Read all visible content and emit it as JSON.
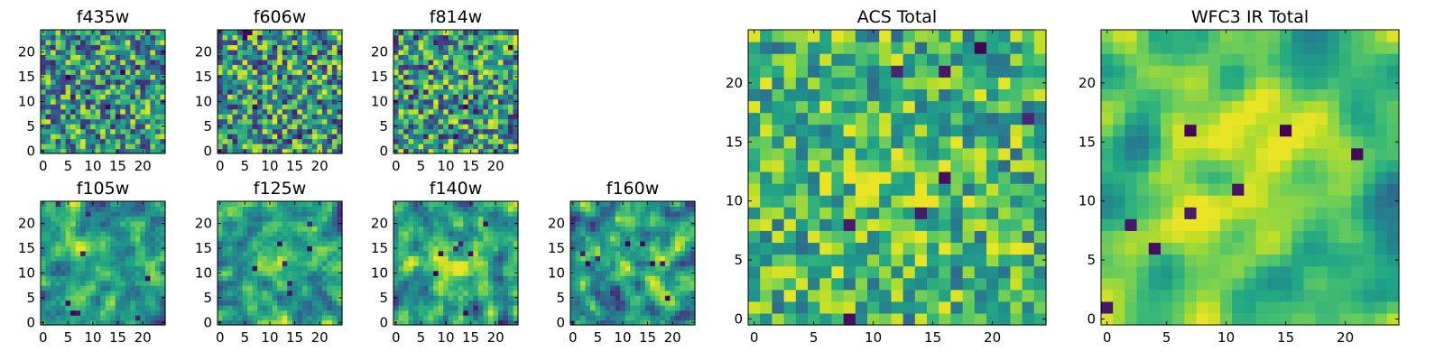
{
  "chart_data": [
    {
      "type": "heatmap",
      "title": "f435w",
      "grid_size": 25,
      "xlim": [
        0,
        24
      ],
      "ylim": [
        0,
        24
      ],
      "xticks": [
        "0",
        "5",
        "10",
        "15",
        "20"
      ],
      "yticks": [
        "0",
        "5",
        "10",
        "15",
        "20"
      ],
      "seed": 11,
      "smooth": 0,
      "center": 0.0,
      "lo": 0.12,
      "hi": 0.95,
      "colormap": "viridis"
    },
    {
      "type": "heatmap",
      "title": "f606w",
      "grid_size": 25,
      "xlim": [
        0,
        24
      ],
      "ylim": [
        0,
        24
      ],
      "xticks": [
        "0",
        "5",
        "10",
        "15",
        "20"
      ],
      "yticks": [
        "0",
        "5",
        "10",
        "15",
        "20"
      ],
      "seed": 23,
      "smooth": 0,
      "center": 0.0,
      "lo": 0.1,
      "hi": 0.97,
      "colormap": "viridis"
    },
    {
      "type": "heatmap",
      "title": "f814w",
      "grid_size": 25,
      "xlim": [
        0,
        24
      ],
      "ylim": [
        0,
        24
      ],
      "xticks": [
        "0",
        "5",
        "10",
        "15",
        "20"
      ],
      "yticks": [
        "0",
        "5",
        "10",
        "15",
        "20"
      ],
      "seed": 37,
      "smooth": 0,
      "center": 0.0,
      "lo": 0.1,
      "hi": 0.97,
      "colormap": "viridis"
    },
    {
      "type": "heatmap",
      "title": "f105w",
      "grid_size": 25,
      "xlim": [
        0,
        24
      ],
      "ylim": [
        0,
        24
      ],
      "xticks": [
        "0",
        "5",
        "10",
        "15",
        "20"
      ],
      "yticks": [
        "0",
        "5",
        "10",
        "15",
        "20"
      ],
      "seed": 41,
      "smooth": 1,
      "center": 0.15,
      "lo": 0.15,
      "hi": 0.97,
      "colormap": "viridis"
    },
    {
      "type": "heatmap",
      "title": "f125w",
      "grid_size": 25,
      "xlim": [
        0,
        24
      ],
      "ylim": [
        0,
        24
      ],
      "xticks": [
        "0",
        "5",
        "10",
        "15",
        "20"
      ],
      "yticks": [
        "0",
        "5",
        "10",
        "15",
        "20"
      ],
      "seed": 53,
      "smooth": 1,
      "center": 0.15,
      "lo": 0.12,
      "hi": 0.97,
      "colormap": "viridis"
    },
    {
      "type": "heatmap",
      "title": "f140w",
      "grid_size": 25,
      "xlim": [
        0,
        24
      ],
      "ylim": [
        0,
        24
      ],
      "xticks": [
        "0",
        "5",
        "10",
        "15",
        "20"
      ],
      "yticks": [
        "0",
        "5",
        "10",
        "15",
        "20"
      ],
      "seed": 67,
      "smooth": 1,
      "center": 0.25,
      "lo": 0.1,
      "hi": 0.97,
      "colormap": "viridis"
    },
    {
      "type": "heatmap",
      "title": "f160w",
      "grid_size": 25,
      "xlim": [
        0,
        24
      ],
      "ylim": [
        0,
        24
      ],
      "xticks": [
        "0",
        "5",
        "10",
        "15",
        "20"
      ],
      "yticks": [
        "0",
        "5",
        "10",
        "15",
        "20"
      ],
      "seed": 79,
      "smooth": 1,
      "center": 0.2,
      "lo": 0.1,
      "hi": 0.97,
      "colormap": "viridis"
    },
    {
      "type": "heatmap",
      "title": "ACS Total",
      "grid_size": 25,
      "xlim": [
        0,
        24
      ],
      "ylim": [
        0,
        24
      ],
      "xticks": [
        "0",
        "5",
        "10",
        "15",
        "20"
      ],
      "yticks": [
        "0",
        "5",
        "10",
        "15",
        "20"
      ],
      "seed": 97,
      "smooth": 0,
      "center": 0.2,
      "lo": 0.35,
      "hi": 0.97,
      "colormap": "viridis"
    },
    {
      "type": "heatmap",
      "title": "WFC3 IR Total",
      "grid_size": 25,
      "xlim": [
        0,
        24
      ],
      "ylim": [
        0,
        24
      ],
      "xticks": [
        "0",
        "5",
        "10",
        "15",
        "20"
      ],
      "yticks": [
        "0",
        "5",
        "10",
        "15",
        "20"
      ],
      "seed": 113,
      "smooth": 2,
      "center": 0.45,
      "lo": 0.35,
      "hi": 0.97,
      "colormap": "viridis"
    }
  ]
}
